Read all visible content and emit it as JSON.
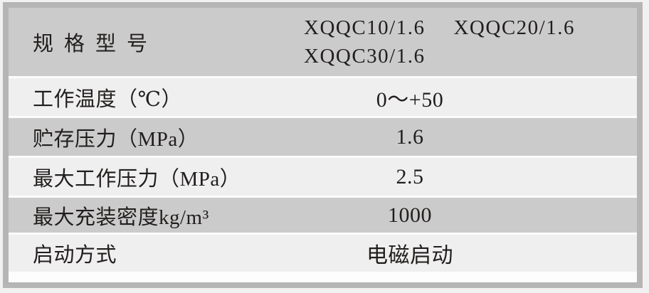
{
  "table": {
    "rows": [
      {
        "label": "规格型号",
        "values": [
          "XQQC10/1.6",
          "XQQC20/1.6",
          "XQQC30/1.6"
        ]
      },
      {
        "label": "工作温度（℃）",
        "value": "0～+50"
      },
      {
        "label": "贮存压力（MPa）",
        "value": "1.6"
      },
      {
        "label": "最大工作压力（MPa）",
        "value": "2.5"
      },
      {
        "label": "最大充装密度kg/m³",
        "value": "1000"
      },
      {
        "label": "启动方式",
        "value": "电磁启动"
      }
    ]
  },
  "colors": {
    "outer_background": "#f1f1f1",
    "frame_border": "#b5b5b5",
    "row_gray": "#cbcbcb",
    "row_light": "#efefef",
    "row_separator": "#fcfcfc",
    "text": "#211e1d"
  }
}
